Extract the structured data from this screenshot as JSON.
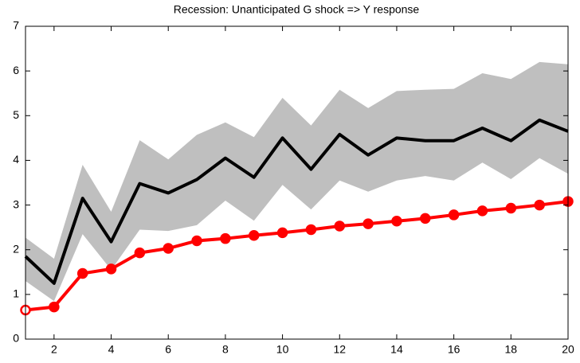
{
  "chart_data": {
    "type": "line",
    "title": "Recession: Unanticipated G shock => Y response",
    "x": [
      1,
      2,
      3,
      4,
      5,
      6,
      7,
      8,
      9,
      10,
      11,
      12,
      13,
      14,
      15,
      16,
      17,
      18,
      19,
      20
    ],
    "band": {
      "color": "#bfbfbf",
      "upper": [
        2.27,
        1.8,
        3.9,
        2.85,
        4.45,
        4.02,
        4.57,
        4.85,
        4.52,
        5.4,
        4.78,
        5.58,
        5.17,
        5.55,
        5.58,
        5.6,
        5.95,
        5.82,
        6.2,
        6.15
      ],
      "lower": [
        1.3,
        0.85,
        2.35,
        1.55,
        2.45,
        2.42,
        2.55,
        3.1,
        2.65,
        3.45,
        2.9,
        3.55,
        3.3,
        3.55,
        3.65,
        3.55,
        3.95,
        3.58,
        4.05,
        3.7
      ]
    },
    "series": [
      {
        "color": "#000000",
        "markers": false,
        "values": [
          1.85,
          1.25,
          3.15,
          2.18,
          3.48,
          3.27,
          3.57,
          4.05,
          3.62,
          4.5,
          3.8,
          4.58,
          4.12,
          4.5,
          4.44,
          4.44,
          4.72,
          4.44,
          4.9,
          4.65
        ]
      },
      {
        "color": "#ff0000",
        "markers": true,
        "values": [
          0.65,
          0.72,
          1.47,
          1.57,
          1.93,
          2.03,
          2.2,
          2.25,
          2.32,
          2.38,
          2.45,
          2.53,
          2.58,
          2.64,
          2.7,
          2.78,
          2.87,
          2.93,
          3.0,
          3.08
        ]
      }
    ],
    "xlim": [
      1,
      20
    ],
    "xticks": [
      2,
      4,
      6,
      8,
      10,
      12,
      14,
      16,
      18,
      20
    ],
    "ylim": [
      0,
      7
    ],
    "yticks": [
      0,
      1,
      2,
      3,
      4,
      5,
      6,
      7
    ]
  }
}
